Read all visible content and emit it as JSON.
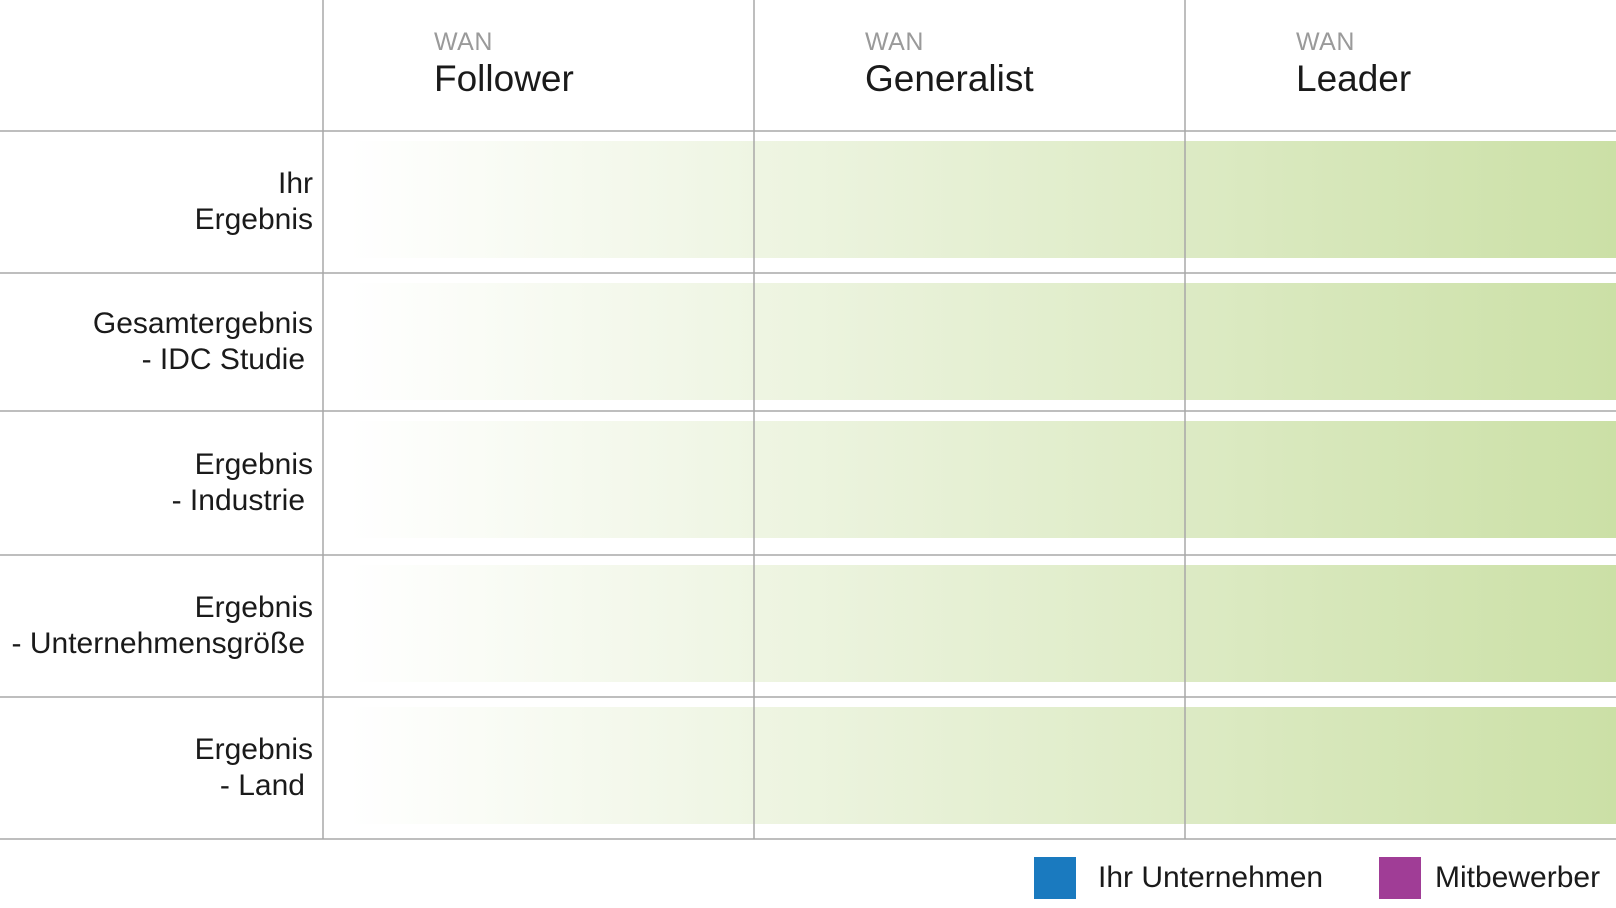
{
  "chart_data": {
    "type": "table",
    "columns": [
      {
        "kicker": "WAN",
        "label": "Follower"
      },
      {
        "kicker": "WAN",
        "label": "Generalist"
      },
      {
        "kicker": "WAN",
        "label": "Leader"
      }
    ],
    "rows": [
      {
        "lines": [
          "Ihr",
          "Ergebnis"
        ]
      },
      {
        "lines": [
          "Gesamtergebnis",
          "- IDC Studie"
        ]
      },
      {
        "lines": [
          "Ergebnis",
          "- Industrie"
        ]
      },
      {
        "lines": [
          "Ergebnis",
          "- Unternehmensgröße"
        ]
      },
      {
        "lines": [
          "Ergebnis",
          "- Land"
        ]
      }
    ],
    "legend": [
      {
        "label": "Ihr Unternehmen",
        "color": "#1a7abf"
      },
      {
        "label": "Mitbewerber",
        "color": "#a03d96"
      }
    ],
    "colors": {
      "band_start": "#ffffff",
      "band_end": "#cbe0a6",
      "grid": "#a8a8a8"
    }
  }
}
